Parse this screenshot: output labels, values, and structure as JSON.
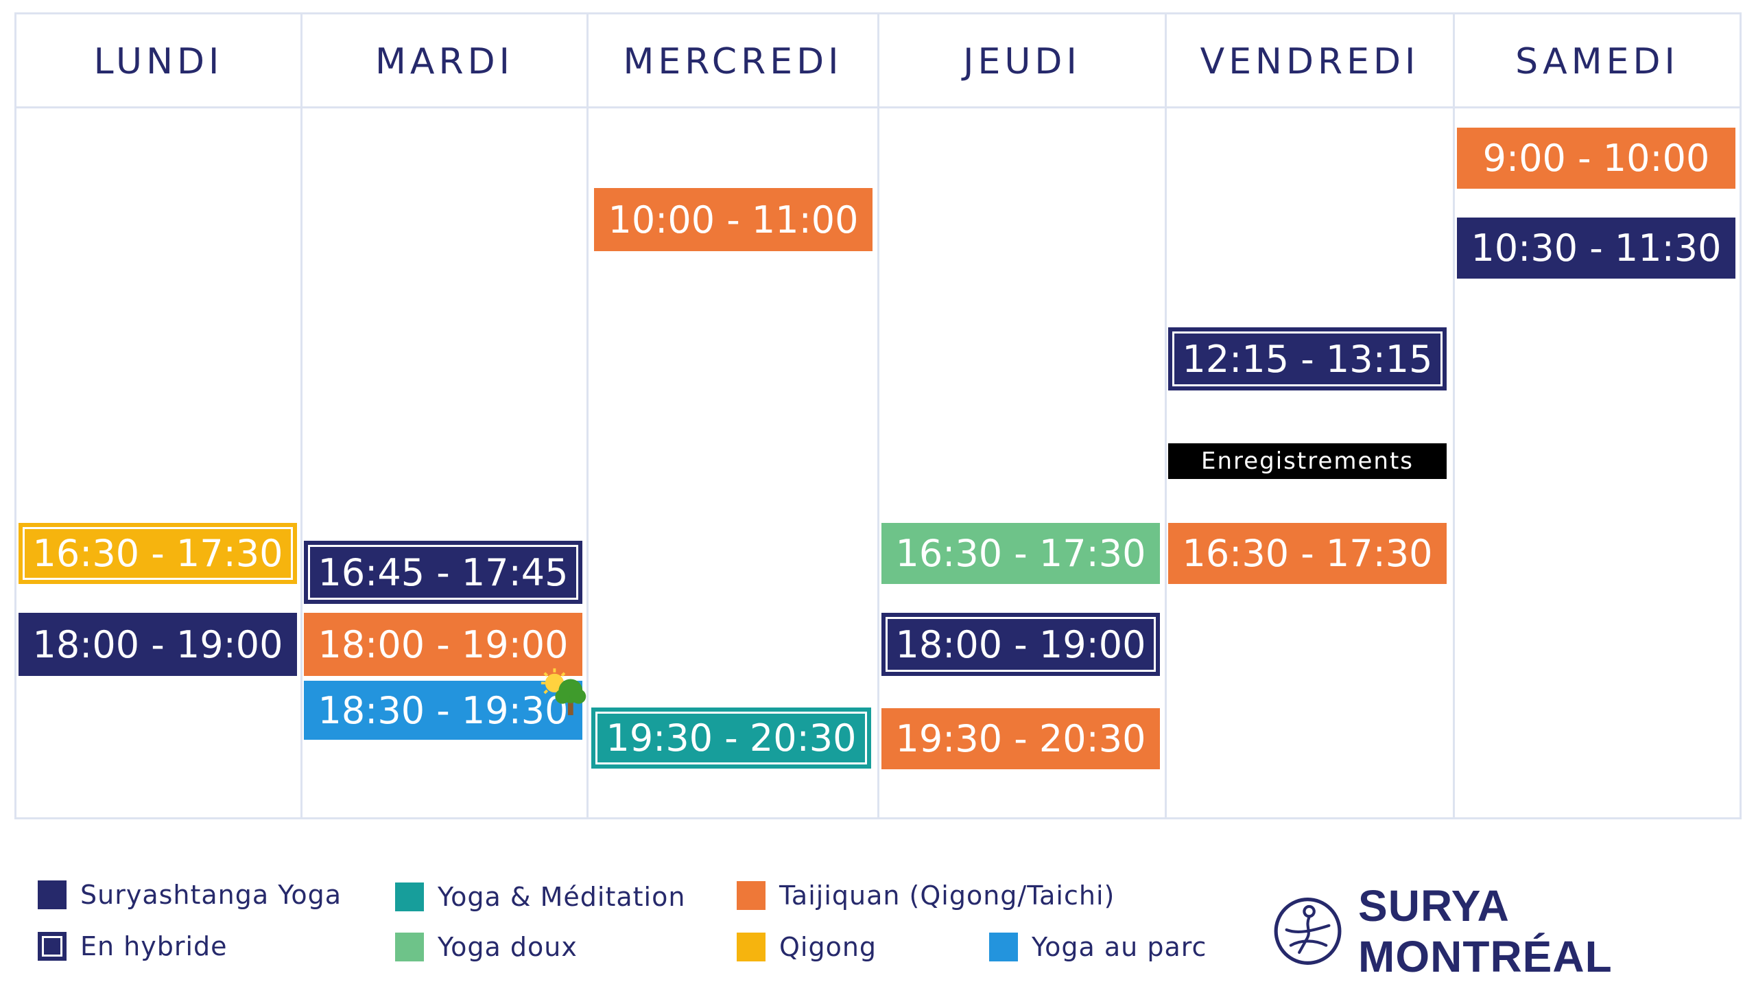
{
  "days": [
    "LUNDI",
    "MARDI",
    "MERCREDI",
    "JEUDI",
    "VENDREDI",
    "SAMEDI"
  ],
  "slots": {
    "lundi_1": "16:30 - 17:30",
    "lundi_2": "18:00 - 19:00",
    "mardi_1": "16:45 - 17:45",
    "mardi_2": "18:00 - 19:00",
    "mardi_3": "18:30 - 19:30",
    "mercredi_1": "10:00 - 11:00",
    "mercredi_2": "19:30 - 20:30",
    "jeudi_1": "16:30 - 17:30",
    "jeudi_2": "18:00 - 19:00",
    "jeudi_3": "19:30 - 20:30",
    "vendredi_1": "12:15 - 13:15",
    "vendredi_recordings": "Enregistrements",
    "vendredi_2": "16:30 - 17:30",
    "samedi_1": "9:00 - 10:00",
    "samedi_2": "10:30 - 11:30"
  },
  "legend": [
    "Suryashtanga Yoga",
    "En hybride",
    "Yoga & Méditation",
    "Yoga doux",
    "Taijiquan (Qigong/Taichi)",
    "Qigong",
    "Yoga au parc"
  ],
  "brand": "SURYA MONTRÉAL",
  "colors": {
    "suryashtanga": "#26296b",
    "yoga_meditation": "#179e9b",
    "yoga_doux": "#6ec389",
    "taijiquan": "#ee7838",
    "qigong": "#f6b40e",
    "yoga_parc": "#2394dd",
    "grid": "#dde3f0",
    "text": "#26296b"
  },
  "icons": [
    "park-sun-tree-icon",
    "surya-logo-icon"
  ]
}
